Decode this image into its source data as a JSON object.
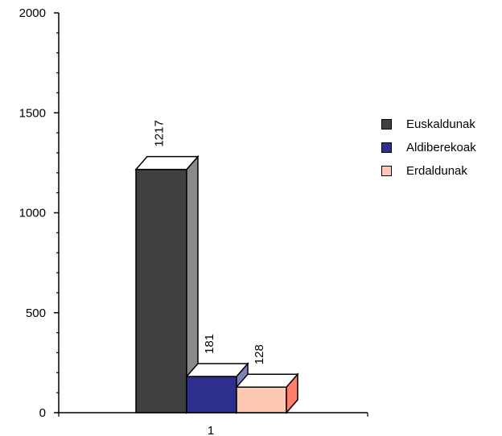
{
  "chart_data": {
    "type": "bar",
    "categories": [
      "1"
    ],
    "series": [
      {
        "name": "Euskaldunak",
        "values": [
          1217
        ],
        "color": "#404040",
        "side": "#8a8a8a",
        "top": "#ffffff"
      },
      {
        "name": "Aldiberekoak",
        "values": [
          181
        ],
        "color": "#2e2e8e",
        "side": "#8080b8",
        "top": "#ffffff"
      },
      {
        "name": "Erdaldunak",
        "values": [
          128
        ],
        "color": "#ffc8b2",
        "side": "#ff7f6a",
        "top": "#ffffff"
      }
    ],
    "ylim": [
      0,
      2000
    ],
    "yticks": [
      0,
      500,
      1000,
      1500,
      2000
    ],
    "title": "",
    "xlabel": "",
    "ylabel": "",
    "legend": "right",
    "grid": false,
    "style": "3d-column"
  }
}
